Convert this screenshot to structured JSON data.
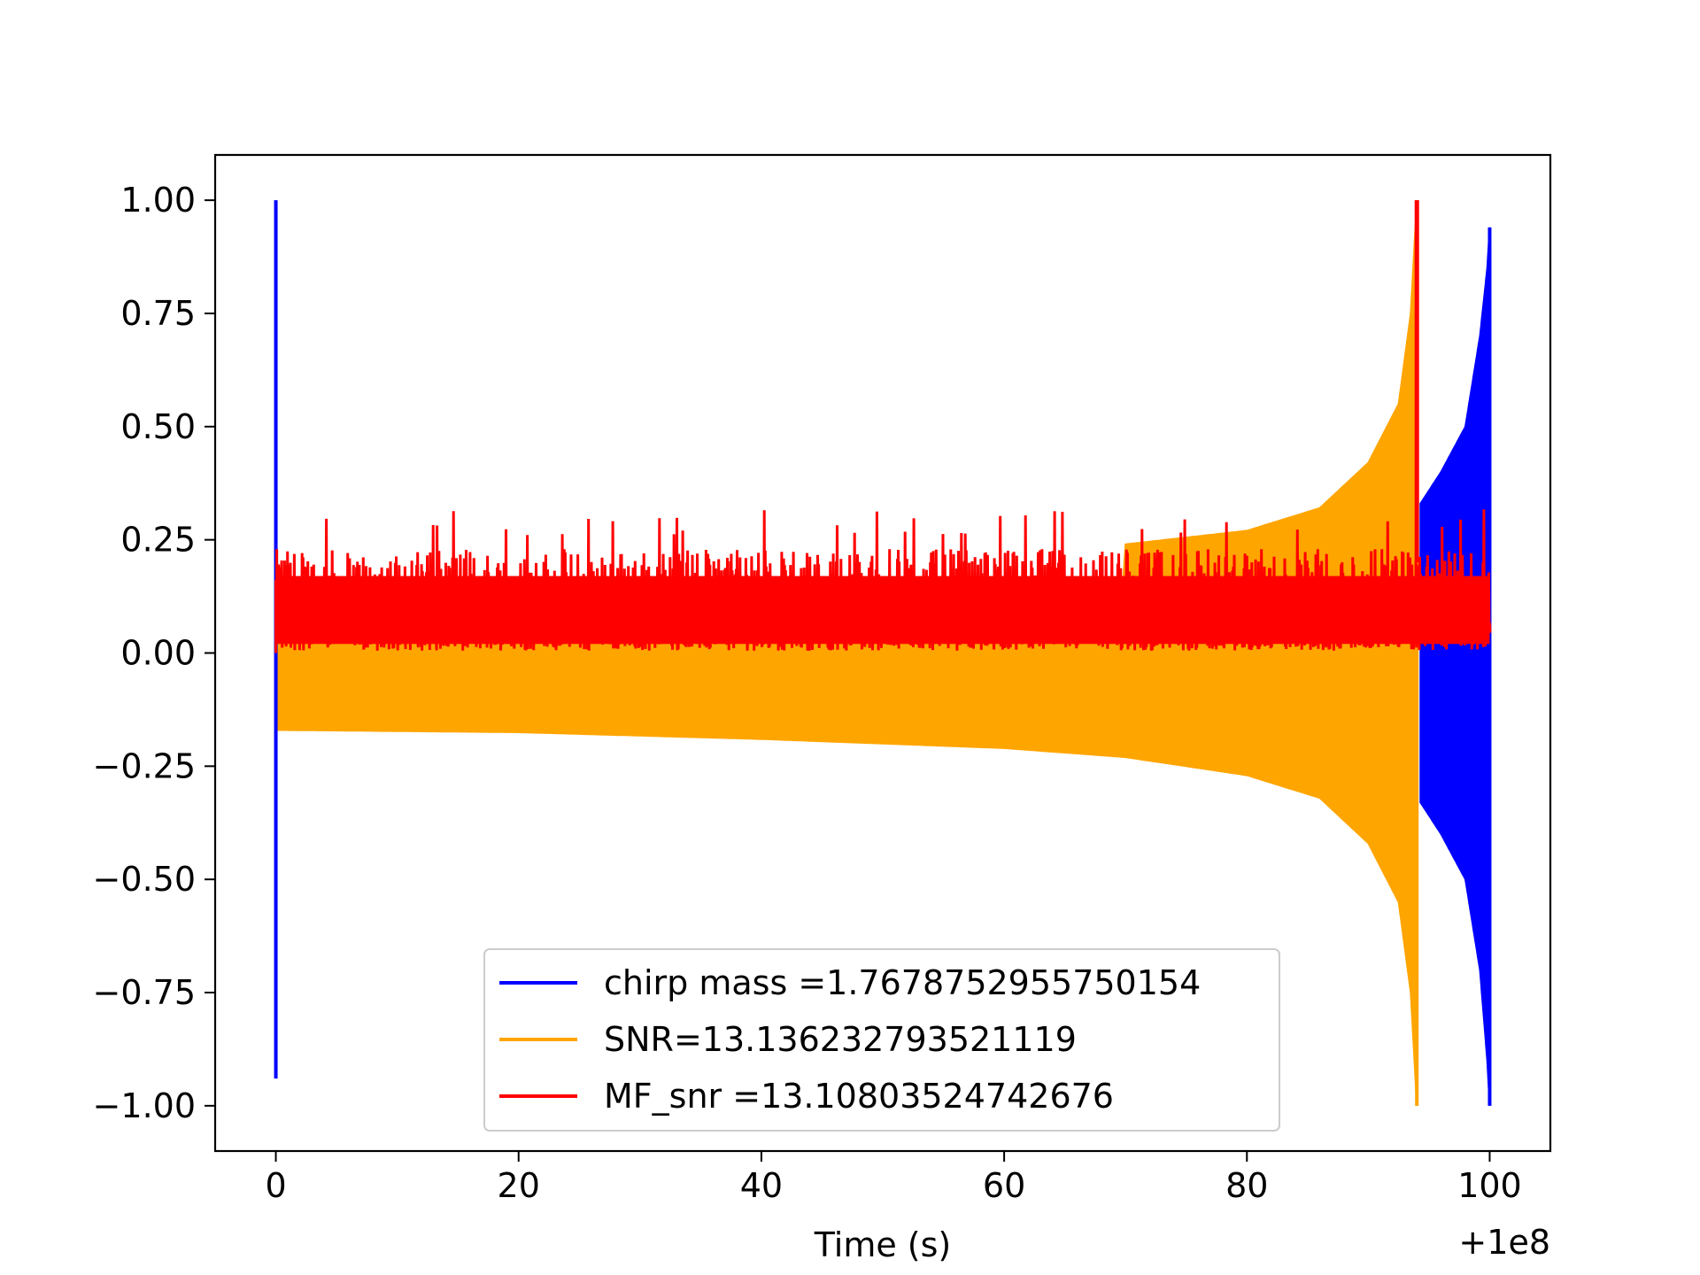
{
  "chart_data": {
    "type": "line",
    "title": "",
    "xlabel": "Time (s)",
    "ylabel": "",
    "x_offset_label": "+1e8",
    "xlim": [
      -5,
      105
    ],
    "ylim": [
      -1.1,
      1.1
    ],
    "xticks": [
      0,
      20,
      40,
      60,
      80,
      100
    ],
    "xtick_labels": [
      "0",
      "20",
      "40",
      "60",
      "80",
      "100"
    ],
    "yticks": [
      1.0,
      0.75,
      0.5,
      0.25,
      0.0,
      -0.25,
      -0.5,
      -0.75,
      -1.0
    ],
    "ytick_labels": [
      "1.00",
      "0.75",
      "0.50",
      "0.25",
      "0.00",
      "−0.25",
      "−0.50",
      "−0.75",
      "−1.00"
    ],
    "grid": false,
    "legend_position": "lower-center",
    "series": [
      {
        "name": "chirp mass =1.7678752955750154",
        "color": "#0000ff",
        "points": [
          [
            0,
            1.0
          ],
          [
            0,
            -0.94
          ],
          [
            94.3,
            -0.33
          ],
          [
            96,
            -0.4
          ],
          [
            98,
            -0.5
          ],
          [
            99.2,
            -0.7
          ],
          [
            99.8,
            -0.9
          ],
          [
            100,
            -1.0
          ],
          [
            94.3,
            0.33
          ],
          [
            96,
            0.4
          ],
          [
            98,
            0.5
          ],
          [
            99.2,
            0.7
          ],
          [
            99.8,
            0.85
          ],
          [
            100,
            0.94
          ]
        ]
      },
      {
        "name": "SNR=13.136232793521119",
        "color": "#ffa500",
        "points": [
          [
            0,
            -0.17
          ],
          [
            20,
            -0.175
          ],
          [
            40,
            -0.19
          ],
          [
            60,
            -0.21
          ],
          [
            70,
            -0.23
          ],
          [
            80,
            -0.27
          ],
          [
            86,
            -0.32
          ],
          [
            90,
            -0.42
          ],
          [
            92.5,
            -0.55
          ],
          [
            93.5,
            -0.75
          ],
          [
            94,
            -1.0
          ],
          [
            0,
            0.0
          ],
          [
            70,
            0.24
          ],
          [
            80,
            0.27
          ],
          [
            86,
            0.32
          ],
          [
            90,
            0.42
          ],
          [
            92.5,
            0.55
          ],
          [
            93.5,
            0.75
          ],
          [
            94,
            1.0
          ]
        ]
      },
      {
        "name": "MF_snr =13.10803524742676",
        "color": "#ff0000",
        "points": [
          [
            0,
            0.0
          ],
          [
            0,
            0.26
          ],
          [
            20,
            0.26
          ],
          [
            40,
            0.27
          ],
          [
            60,
            0.26
          ],
          [
            80,
            0.27
          ],
          [
            94,
            1.0
          ],
          [
            100,
            0.26
          ]
        ]
      }
    ]
  }
}
